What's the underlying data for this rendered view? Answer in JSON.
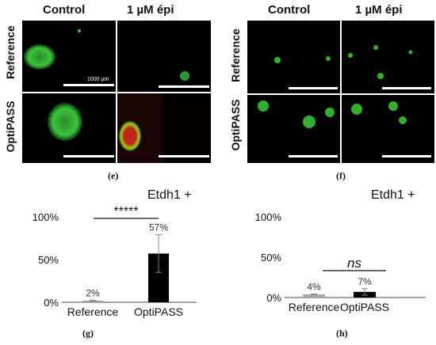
{
  "panel_e": {
    "col_headers": [
      "Control",
      "1 µM épi"
    ],
    "row_labels": [
      "Reference",
      "OptiPASS"
    ],
    "scale_label": "1000 µm",
    "label": "(e)"
  },
  "panel_f": {
    "col_headers": [
      "Control",
      "1 µM épi"
    ],
    "row_labels": [
      "Reference",
      "OptiPASS"
    ],
    "label": "(f)"
  },
  "colors": {
    "bar_reference": "#a6a6a6",
    "bar_optipass": "#000000",
    "fluorescence": "#39c43a"
  },
  "chart_data": [
    {
      "type": "bar",
      "title": "Etdh1 +",
      "categories": [
        "Reference",
        "OptiPASS"
      ],
      "values": [
        2,
        57
      ],
      "error": [
        0.5,
        22
      ],
      "data_labels": [
        "2%",
        "57%"
      ],
      "yticks": [
        "0%",
        "50%",
        "100%"
      ],
      "ylim": [
        0,
        100
      ],
      "significance": "*****",
      "panel_label": "(g)"
    },
    {
      "type": "bar",
      "title": "Etdh1 +",
      "categories": [
        "Reference",
        "OptiPASS"
      ],
      "values": [
        4,
        7
      ],
      "error": [
        0.5,
        4
      ],
      "data_labels": [
        "4%",
        "7%"
      ],
      "yticks": [
        "0%",
        "50%",
        "100%"
      ],
      "ylim": [
        0,
        100
      ],
      "significance": "ns",
      "panel_label": "(h)"
    }
  ]
}
